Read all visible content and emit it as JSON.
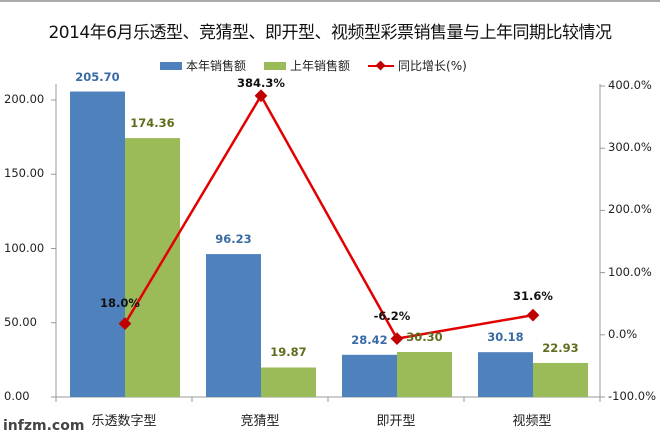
{
  "title": "2014年6月乐透型、竞猜型、即开型、视频型彩票销售量与上年同期比较情况",
  "legend": [
    {
      "label": "本年销售额",
      "color": "#4F81BD",
      "kind": "bar"
    },
    {
      "label": "上年销售额",
      "color": "#9BBB59",
      "kind": "bar"
    },
    {
      "label": "同比增长(%)",
      "color": "#E30000",
      "kind": "line"
    }
  ],
  "left_axis_ticks": [
    "200.00",
    "150.00",
    "100.00",
    "50.00",
    "0.00"
  ],
  "right_axis_ticks": [
    "400.0%",
    "300.0%",
    "200.0%",
    "100.0%",
    "0.0%",
    "-100.0%"
  ],
  "watermark": "infzm.com",
  "chart_data": {
    "type": "bar",
    "title": "2014年6月乐透型、竞猜型、即开型、视频型彩票销售量与上年同期比较情况",
    "categories": [
      "乐透数字型",
      "竞猜型",
      "即开型",
      "视频型"
    ],
    "series": [
      {
        "name": "本年销售额",
        "type": "bar",
        "axis": "left",
        "values": [
          205.7,
          96.23,
          28.42,
          30.18
        ]
      },
      {
        "name": "上年销售额",
        "type": "bar",
        "axis": "left",
        "values": [
          174.36,
          19.87,
          30.3,
          22.93
        ]
      },
      {
        "name": "同比增长(%)",
        "type": "line",
        "axis": "right",
        "values": [
          18.0,
          384.3,
          -6.2,
          31.6
        ]
      }
    ],
    "labels": {
      "bar1": [
        "205.70",
        "96.23",
        "28.42",
        "30.18"
      ],
      "bar2": [
        "174.36",
        "19.87",
        "30.30",
        "22.93"
      ],
      "line": [
        "18.0%",
        "384.3%",
        "-6.2%",
        "31.6%"
      ]
    },
    "ylim_left": [
      0,
      210
    ],
    "ylim_right": [
      -100,
      400
    ],
    "xlabel": "",
    "ylabel": "",
    "legend_position": "top",
    "grid": false
  }
}
